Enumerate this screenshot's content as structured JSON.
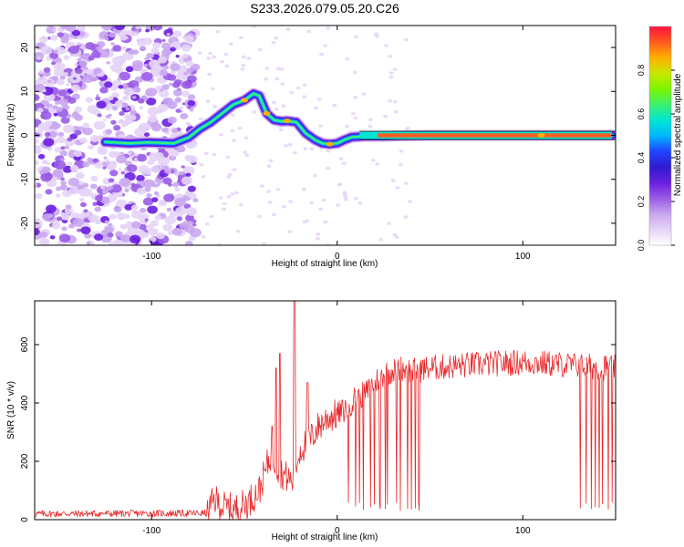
{
  "title": "S233.2026.079.05.20.C26",
  "colors": {
    "frame": "#000000",
    "snr_line": "#e8282a",
    "colormap": [
      "#ffffff",
      "#e6d4f7",
      "#c9a6ef",
      "#9a5ce6",
      "#6a1ee0",
      "#2f1ccf",
      "#1f43ff",
      "#00b7ff",
      "#00e6d2",
      "#3cf06e",
      "#7cf500",
      "#c8e800",
      "#ffb000",
      "#ff5a1e",
      "#ff1040"
    ]
  },
  "chart_data": [
    {
      "type": "heatmap",
      "name": "spectrogram",
      "title": "S233.2026.079.05.20.C26",
      "xlabel": "Height of straight line (km)",
      "ylabel": "Frequency (Hz)",
      "xlim": [
        -163,
        150
      ],
      "ylim": [
        -25,
        25
      ],
      "xticks": [
        -100,
        0,
        100
      ],
      "xtick_labels": [
        "-100",
        "0",
        "100"
      ],
      "yticks": [
        -20,
        -10,
        0,
        10,
        20
      ],
      "ytick_labels": [
        "-20",
        "-10",
        "0",
        "10",
        "20"
      ],
      "ridge": {
        "x": [
          -125,
          -112,
          -102,
          -95,
          -88,
          -80,
          -74,
          -68,
          -62,
          -56,
          -50,
          -45,
          -42,
          -38,
          -34,
          -30,
          -27,
          -22,
          -17,
          -12,
          -8,
          -4,
          0,
          4,
          8,
          15,
          25,
          35,
          50,
          100,
          110,
          148
        ],
        "y": [
          -1.5,
          -1.8,
          -1.6,
          -1.7,
          -1.8,
          -0.5,
          1.5,
          3,
          5,
          7,
          8,
          9.5,
          9,
          5,
          3.5,
          3.2,
          3.3,
          3,
          0.5,
          -1,
          -1.8,
          -2,
          -1.8,
          -1,
          -0.4,
          -0.2,
          -0.2,
          -0.1,
          0,
          0,
          0,
          0
        ]
      },
      "colorbar": {
        "label": "Normalized spectral amplitude",
        "range": [
          0,
          1
        ],
        "ticks": [
          0.0,
          0.2,
          0.4,
          0.6,
          0.8
        ],
        "tick_labels": [
          "0.0",
          "0.2",
          "0.4",
          "0.6",
          "0.8"
        ]
      }
    },
    {
      "type": "line",
      "name": "snr",
      "xlabel": "Height of straight line (km)",
      "ylabel": "SNR (10 * v/v)",
      "xlim": [
        -163,
        150
      ],
      "ylim": [
        0,
        750
      ],
      "xticks": [
        -100,
        0,
        100
      ],
      "xtick_labels": [
        "-100",
        "0",
        "100"
      ],
      "yticks": [
        0,
        200,
        400,
        600
      ],
      "ytick_labels": [
        "0",
        "200",
        "400",
        "600"
      ],
      "envelope": {
        "x": [
          -163,
          -70,
          -66,
          -62,
          -55,
          -48,
          -42,
          -36,
          -30,
          -24,
          -20,
          -15,
          -10,
          -5,
          0,
          5,
          10,
          15,
          20,
          25,
          30,
          35,
          40,
          50,
          70,
          100,
          150
        ],
        "y": [
          20,
          22,
          70,
          45,
          35,
          60,
          100,
          220,
          160,
          130,
          240,
          270,
          320,
          350,
          360,
          380,
          420,
          430,
          470,
          500,
          510,
          520,
          510,
          520,
          530,
          540,
          520
        ]
      },
      "spikes": [
        {
          "x": -35,
          "y": 320
        },
        {
          "x": -33,
          "y": 520
        },
        {
          "x": -31,
          "y": 570
        },
        {
          "x": -23,
          "y": 750
        },
        {
          "x": -16,
          "y": 470
        }
      ],
      "dropouts_x": [
        6,
        10,
        12,
        14,
        18,
        20,
        23,
        26,
        27,
        32,
        34,
        38,
        40,
        42,
        44,
        131,
        134,
        137,
        139,
        141,
        143,
        146,
        148
      ]
    }
  ]
}
